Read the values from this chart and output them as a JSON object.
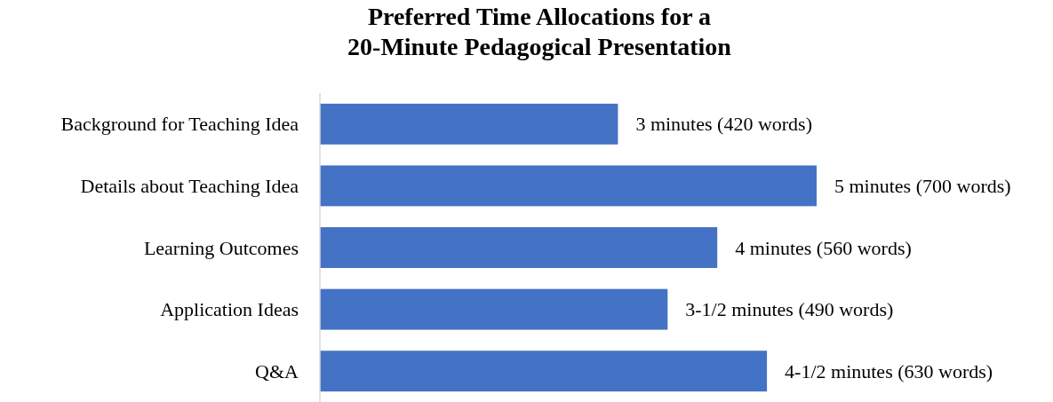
{
  "chart_data": {
    "type": "bar",
    "orientation": "horizontal",
    "title": "Preferred Time Allocations for a\n20-Minute Pedagogical Presentation",
    "categories": [
      "Background for Teaching Idea",
      "Details about Teaching Idea",
      "Learning Outcomes",
      "Application Ideas",
      "Q&A"
    ],
    "series": [
      {
        "color": "#4472c4",
        "values": [
          3,
          5,
          4,
          3.5,
          4.5
        ],
        "value_labels": [
          "3 minutes (420 words)",
          "5 minutes (700 words)",
          "4 minutes (560 words)",
          "3-1/2 minutes (490 words)",
          "4-1/2 minutes (630 words)"
        ]
      }
    ]
  }
}
